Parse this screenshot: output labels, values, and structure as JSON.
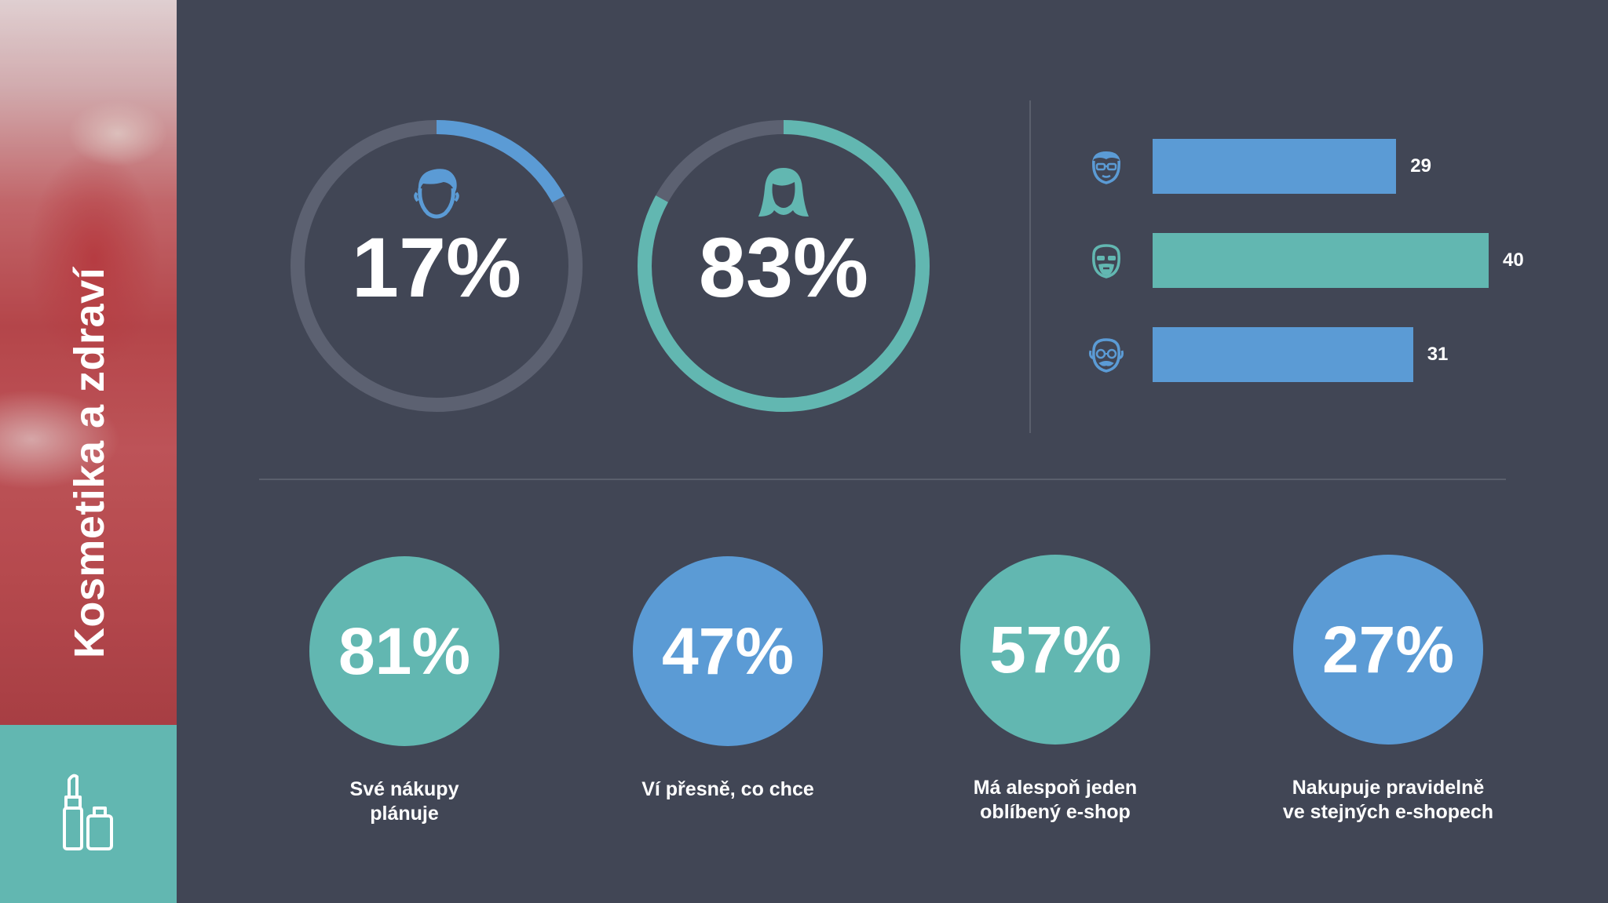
{
  "sidebar": {
    "title": "Kosmetika a zdraví",
    "icon": "lipstick-and-bottle-icon",
    "accent_color": "#62b7b1"
  },
  "gender": [
    {
      "name": "male",
      "percent": "17%",
      "value": 17,
      "icon": "male-head-icon",
      "color": "#5b9bd5"
    },
    {
      "name": "female",
      "percent": "83%",
      "value": 83,
      "icon": "female-head-icon",
      "color": "#62b7b1"
    }
  ],
  "chart_data": {
    "type": "bar",
    "orientation": "horizontal",
    "categories": [
      "young-man-glasses-icon",
      "bearded-man-icon",
      "old-man-glasses-icon"
    ],
    "values": [
      29,
      40,
      31
    ],
    "value_labels": [
      "29",
      "40",
      "31"
    ],
    "colors": [
      "#5b9bd5",
      "#62b7b1",
      "#5b9bd5"
    ],
    "xlim": [
      0,
      40
    ]
  },
  "stats": [
    {
      "value": "81%",
      "label_lines": [
        "Své nákupy",
        "plánuje"
      ],
      "color": "#62b7b1"
    },
    {
      "value": "47%",
      "label_lines": [
        "Ví přesně, co chce"
      ],
      "color": "#5b9bd5"
    },
    {
      "value": "57%",
      "label_lines": [
        "Má alespoň jeden",
        "oblíbený e-shop"
      ],
      "color": "#62b7b1"
    },
    {
      "value": "27%",
      "label_lines": [
        "Nakupuje pravidelně",
        "ve stejných e-shopech"
      ],
      "color": "#5b9bd5"
    }
  ],
  "colors": {
    "background": "#414655",
    "blue": "#5b9bd5",
    "teal": "#62b7b1",
    "ring_track": "#5c6171"
  }
}
